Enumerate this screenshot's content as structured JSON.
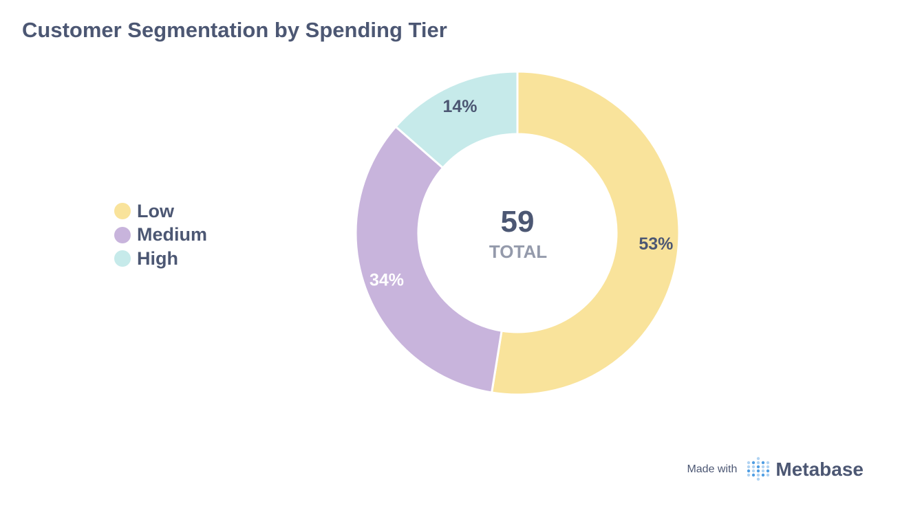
{
  "chart_data": {
    "type": "pie",
    "title": "Customer Segmentation by Spending Tier",
    "categories": [
      "Low",
      "Medium",
      "High"
    ],
    "values": [
      31,
      20,
      8
    ],
    "percent_labels": [
      "53%",
      "34%",
      "14%"
    ],
    "colors": [
      "#f9e39b",
      "#c8b4dc",
      "#c6eaea"
    ],
    "label_colors": [
      "#4c5773",
      "#ffffff",
      "#4c5773"
    ],
    "total_value": "59",
    "total_label": "TOTAL",
    "legend_placement": "left"
  },
  "footer": {
    "made_with": "Made with",
    "brand": "Metabase",
    "logo_icon": "metabase-logo-icon"
  }
}
